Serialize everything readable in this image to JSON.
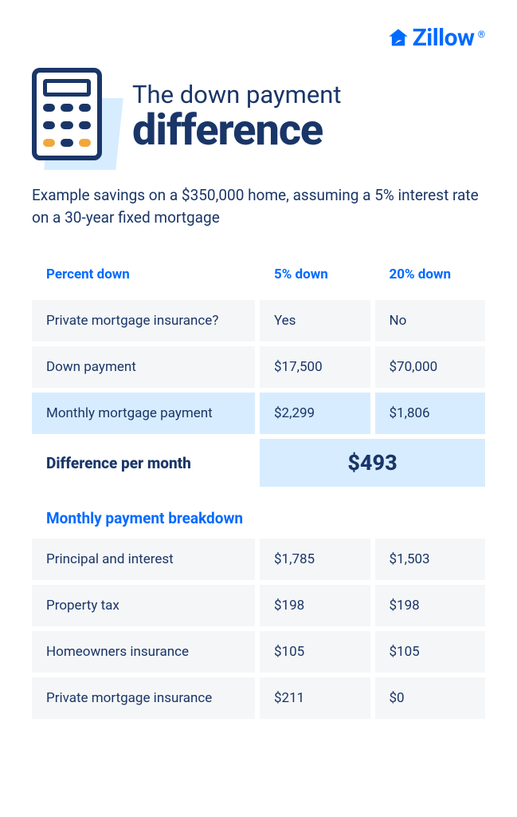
{
  "brand": {
    "name": "Zillow",
    "registered": "®",
    "color": "#006aff"
  },
  "title": {
    "line1": "The down payment",
    "line2": "difference"
  },
  "subtitle": "Example savings on a $350,000 home, assuming a 5% interest rate on a 30-year fixed mortgage",
  "colors": {
    "text_primary": "#1a3668",
    "accent_blue": "#006aff",
    "row_bg": "#f5f6f7",
    "highlight_bg": "#d7ecff",
    "gold": "#f2a73b"
  },
  "table1": {
    "header": {
      "label": "Percent down",
      "col1": "5% down",
      "col2": "20% down"
    },
    "rows": [
      {
        "label": "Private mortgage insurance?",
        "col1": "Yes",
        "col2": "No",
        "highlight": false
      },
      {
        "label": "Down payment",
        "col1": "$17,500",
        "col2": "$70,000",
        "highlight": false
      },
      {
        "label": "Monthly mortgage payment",
        "col1": "$2,299",
        "col2": "$1,806",
        "highlight": true
      }
    ],
    "difference": {
      "label": "Difference per month",
      "value": "$493"
    }
  },
  "table2": {
    "title": "Monthly payment breakdown",
    "rows": [
      {
        "label": "Principal and interest",
        "col1": "$1,785",
        "col2": "$1,503"
      },
      {
        "label": "Property tax",
        "col1": "$198",
        "col2": "$198"
      },
      {
        "label": "Homeowners insurance",
        "col1": "$105",
        "col2": "$105"
      },
      {
        "label": "Private mortgage insurance",
        "col1": "$211",
        "col2": "$0"
      }
    ]
  }
}
